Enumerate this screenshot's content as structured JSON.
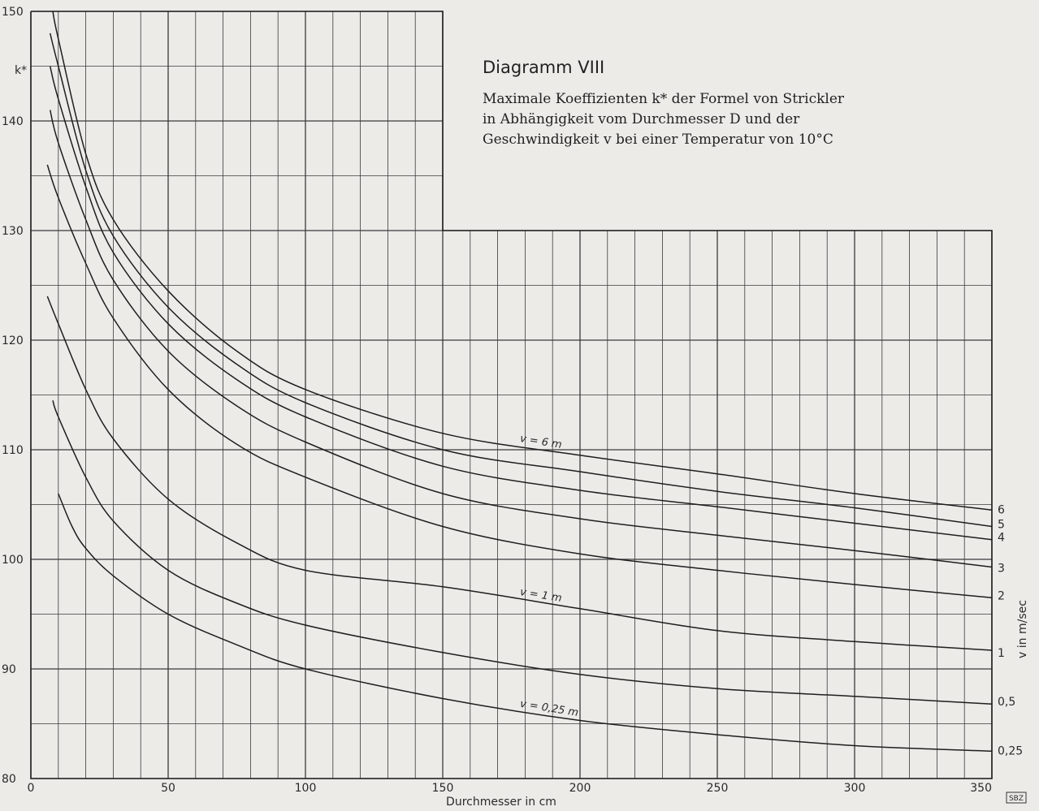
{
  "chart_data": {
    "type": "line",
    "title": "Diagramm VIII",
    "subtitle_lines": [
      "Maximale Koeffizienten k* der Formel von Strickler",
      "in Abhängigkeit vom Durchmesser D und der",
      "Geschwindigkeit v bei einer Temperatur von 10°C"
    ],
    "xlabel": "Durchmesser in cm",
    "ylabel": "k*",
    "legend_axis_label": "v in m/sec",
    "xlim": [
      0,
      350
    ],
    "ylim": [
      80,
      150
    ],
    "x_ticks": [
      0,
      50,
      100,
      150,
      200,
      250,
      300,
      350
    ],
    "y_ticks": [
      80,
      90,
      100,
      110,
      120,
      130,
      140,
      150
    ],
    "x_minor_step": 10,
    "y_minor_step": 5,
    "grid": true,
    "series": [
      {
        "name": "6",
        "x": [
          8,
          10,
          20,
          30,
          50,
          75,
          100,
          150,
          200,
          250,
          300,
          350
        ],
        "y": [
          150,
          147.5,
          137,
          131,
          124.5,
          119,
          115.5,
          111.5,
          109.5,
          107.8,
          106,
          104.5
        ]
      },
      {
        "name": "5",
        "x": [
          7,
          10,
          20,
          30,
          50,
          75,
          100,
          150,
          200,
          250,
          300,
          350
        ],
        "y": [
          148,
          145,
          135.5,
          129.5,
          123,
          117.8,
          114.3,
          110,
          108,
          106.2,
          104.7,
          103
        ]
      },
      {
        "name": "4",
        "x": [
          7,
          10,
          20,
          30,
          50,
          75,
          100,
          150,
          200,
          250,
          300,
          350
        ],
        "y": [
          145,
          142,
          134,
          128,
          121.5,
          116.4,
          113,
          108.5,
          106.3,
          104.8,
          103.3,
          101.8
        ]
      },
      {
        "name": "3",
        "x": [
          7,
          10,
          20,
          30,
          50,
          75,
          100,
          150,
          200,
          250,
          300,
          350
        ],
        "y": [
          141,
          138,
          131,
          125.5,
          119,
          114,
          110.7,
          106,
          103.7,
          102.2,
          100.8,
          99.3
        ]
      },
      {
        "name": "2",
        "x": [
          6,
          10,
          20,
          30,
          50,
          75,
          100,
          150,
          200,
          250,
          300,
          350
        ],
        "y": [
          136,
          133,
          127,
          122,
          115.5,
          110.5,
          107.5,
          103,
          100.5,
          99,
          97.7,
          96.5
        ]
      },
      {
        "name": "1",
        "x": [
          6,
          10,
          20,
          30,
          50,
          75,
          100,
          150,
          200,
          250,
          300,
          350
        ],
        "y": [
          124,
          121.5,
          115.5,
          111,
          105.5,
          101.5,
          99,
          97.5,
          95.5,
          93.5,
          92.5,
          91.7
        ]
      },
      {
        "name": "0,5",
        "x": [
          8,
          10,
          20,
          30,
          50,
          75,
          100,
          150,
          200,
          250,
          300,
          350
        ],
        "y": [
          114.5,
          113,
          107.5,
          103.5,
          99,
          96,
          94,
          91.5,
          89.5,
          88.2,
          87.5,
          86.8
        ]
      },
      {
        "name": "0,25",
        "x": [
          10,
          15,
          20,
          30,
          50,
          75,
          100,
          150,
          200,
          250,
          300,
          350
        ],
        "y": [
          106,
          103,
          101,
          98.5,
          95,
          92.2,
          90,
          87.3,
          85.3,
          84,
          83,
          82.5
        ]
      }
    ],
    "curve_labels": [
      {
        "text": "v = 6 m",
        "series": "6",
        "at_x": 178
      },
      {
        "text": "v = 1 m",
        "series": "1",
        "at_x": 178
      },
      {
        "text": "v = 0,25 m",
        "series": "0,25",
        "at_x": 178
      }
    ],
    "stamp": "SBZ"
  }
}
